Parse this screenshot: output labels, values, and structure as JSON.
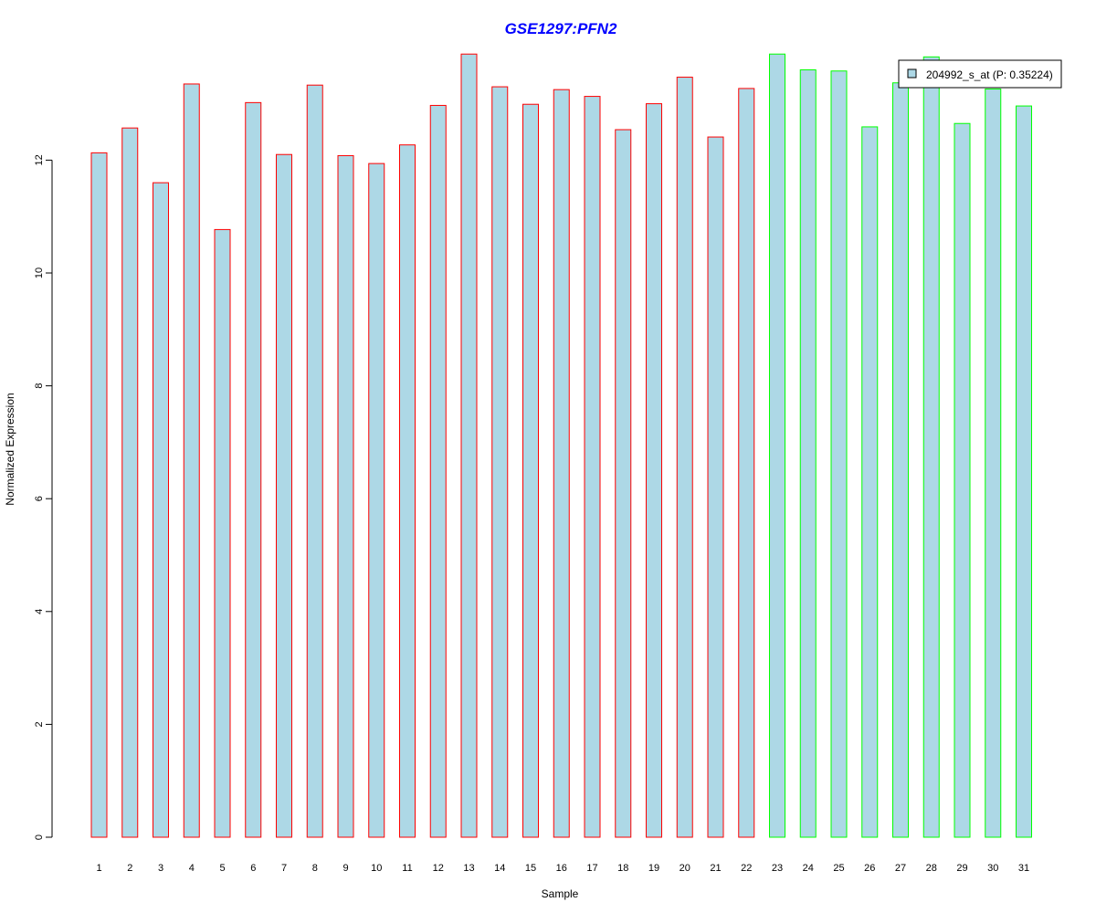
{
  "chart_data": {
    "type": "bar",
    "title": "GSE1297:PFN2",
    "xlabel": "Sample",
    "ylabel": "Normalized Expression",
    "ylim": [
      0,
      14
    ],
    "yticks": [
      0,
      2,
      4,
      6,
      8,
      10,
      12
    ],
    "categories": [
      "1",
      "2",
      "3",
      "4",
      "5",
      "6",
      "7",
      "8",
      "9",
      "10",
      "11",
      "12",
      "13",
      "14",
      "15",
      "16",
      "17",
      "18",
      "19",
      "20",
      "21",
      "22",
      "23",
      "24",
      "25",
      "26",
      "27",
      "28",
      "29",
      "30",
      "31"
    ],
    "values": [
      12.13,
      12.57,
      11.6,
      13.35,
      10.77,
      13.02,
      12.1,
      13.33,
      12.08,
      11.94,
      12.27,
      12.97,
      13.88,
      13.3,
      12.99,
      13.25,
      13.13,
      12.54,
      13.0,
      13.47,
      12.41,
      13.27,
      13.88,
      13.6,
      13.58,
      12.59,
      13.37,
      13.83,
      12.65,
      13.26,
      12.96
    ],
    "groups": [
      1,
      1,
      1,
      1,
      1,
      1,
      1,
      1,
      1,
      1,
      1,
      1,
      1,
      1,
      1,
      1,
      1,
      1,
      1,
      1,
      1,
      1,
      2,
      2,
      2,
      2,
      2,
      2,
      2,
      2,
      2
    ],
    "legend": {
      "entries": [
        "204992_s_at (P: 0.35224)"
      ],
      "placement": "top-right"
    },
    "colors": {
      "fill": "#add8e6",
      "group1_border": "#ff0000",
      "group2_border": "#00ff00",
      "title": "#0000ff",
      "axis": "#000000"
    },
    "grid": false
  }
}
